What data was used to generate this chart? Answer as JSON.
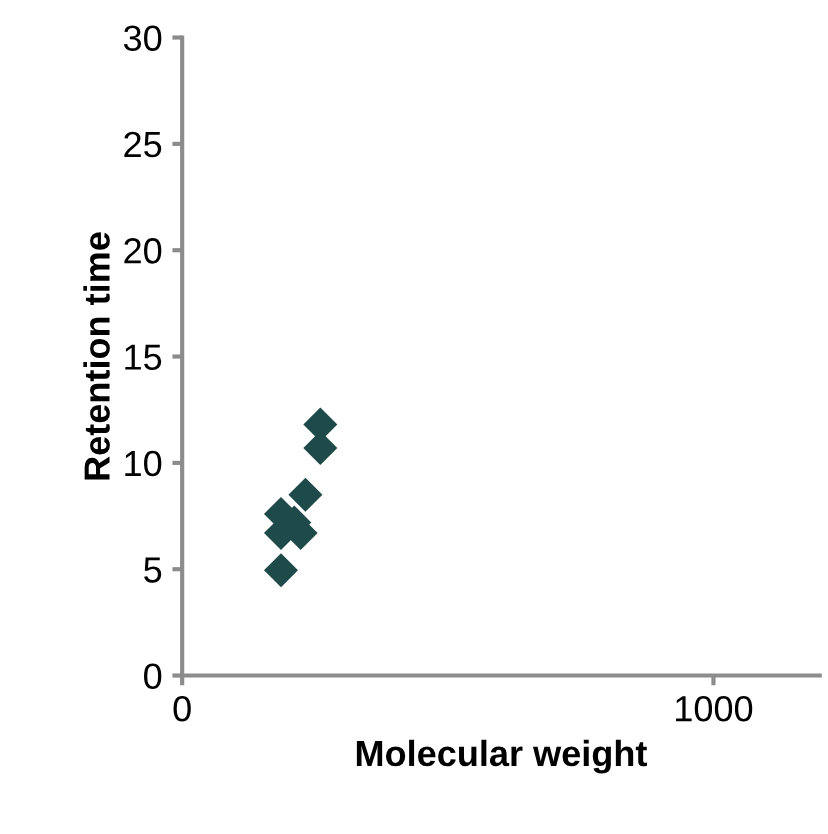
{
  "chart_data": {
    "type": "scatter",
    "xlabel": "Molecular weight",
    "ylabel": "Retention time",
    "x": [
      260,
      260,
      232,
      186,
      186,
      223,
      211,
      186
    ],
    "series": [
      {
        "color": "#1f4a4a",
        "values": [
          11.8,
          10.7,
          8.5,
          7.6,
          6.7,
          6.7,
          7.2,
          4.95
        ]
      }
    ],
    "marker": "diamond",
    "xlim": [
      0,
      1200
    ],
    "xticks": [
      0,
      1000
    ],
    "ylim": [
      0,
      30
    ],
    "yticks": [
      0,
      5,
      10,
      15,
      20,
      25,
      30
    ],
    "grid": false,
    "legend": false
  }
}
